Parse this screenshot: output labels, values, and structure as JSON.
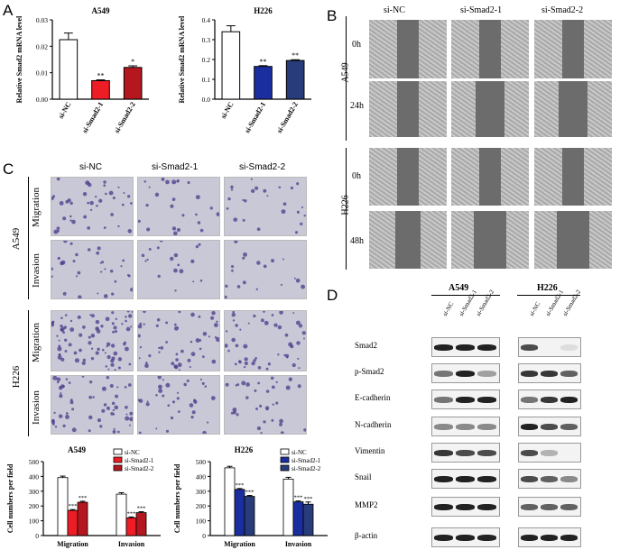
{
  "panels": {
    "A": "A",
    "B": "B",
    "C": "C",
    "D": "D"
  },
  "conditions": [
    "si-NC",
    "si-Smad2-1",
    "si-Smad2-2"
  ],
  "panelA": {
    "ylabel": "Relative Smad2 mRNA level",
    "stars": [
      "**",
      "*",
      "**",
      "**"
    ]
  },
  "panelB": {
    "cell_lines": [
      "A549",
      "H226"
    ],
    "times_a549": [
      "0h",
      "24h"
    ],
    "times_h226": [
      "0h",
      "48h"
    ]
  },
  "panelC": {
    "cell_lines": [
      "A549",
      "H226"
    ],
    "assays": [
      "Migration",
      "Invasion"
    ],
    "ylabel": "Cell numbers per field",
    "stars": "***"
  },
  "panelD": {
    "cell_lines": [
      "A549",
      "H226"
    ],
    "lane_labels": [
      "si-NC",
      "si-Smad2-1",
      "si-Smad2-2"
    ],
    "proteins": [
      "Smad2",
      "p-Smad2",
      "E-cadherin",
      "N-cadherin",
      "Vimentin",
      "Snail",
      "MMP2",
      "β-actin"
    ]
  },
  "colors": {
    "si-NC": "#ffffff",
    "si-Smad2-1_A549": "#ee1c24",
    "si-Smad2-2_A549": "#b4171d",
    "si-Smad2-1_H226": "#1b2ea0",
    "si-Smad2-2_H226": "#283b7a"
  },
  "chart_data": [
    {
      "type": "bar",
      "title": "A549",
      "xlabel": "",
      "ylabel": "Relative Smad2 mRNA level",
      "categories": [
        "si-NC",
        "si-Smad2-1",
        "si-Smad2-2"
      ],
      "values": [
        0.0225,
        0.007,
        0.012
      ],
      "errors": [
        0.0025,
        0.0003,
        0.0006
      ],
      "ylim": [
        0,
        0.03
      ],
      "yticks": [
        0.0,
        0.01,
        0.02,
        0.03
      ],
      "ytick_labels": [
        "0.00",
        "0.01",
        "0.02",
        "0.03"
      ],
      "colors": [
        "#ffffff",
        "#ee1c24",
        "#b4171d"
      ],
      "annotations": [
        "",
        "**",
        "*"
      ]
    },
    {
      "type": "bar",
      "title": "H226",
      "xlabel": "",
      "ylabel": "Relative Smad2 mRNA level",
      "categories": [
        "si-NC",
        "si-Smad2-1",
        "si-Smad2-2"
      ],
      "values": [
        0.34,
        0.165,
        0.195
      ],
      "errors": [
        0.03,
        0.004,
        0.004
      ],
      "ylim": [
        0,
        0.4
      ],
      "yticks": [
        0,
        0.1,
        0.2,
        0.3,
        0.4
      ],
      "ytick_labels": [
        "0.0",
        "0.1",
        "0.2",
        "0.3",
        "0.4"
      ],
      "colors": [
        "#ffffff",
        "#1b2ea0",
        "#283b7a"
      ],
      "annotations": [
        "",
        "**",
        "**"
      ]
    },
    {
      "type": "bar",
      "title": "A549",
      "xlabel": "",
      "ylabel": "Cell numbers per field",
      "categories": [
        "Migration",
        "Invasion"
      ],
      "series": [
        {
          "name": "si-NC",
          "values": [
            392,
            280
          ],
          "errors": [
            10,
            10
          ]
        },
        {
          "name": "si-Smad2-1",
          "values": [
            170,
            120
          ],
          "errors": [
            6,
            6
          ]
        },
        {
          "name": "si-Smad2-2",
          "values": [
            225,
            155
          ],
          "errors": [
            7,
            6
          ]
        }
      ],
      "ylim": [
        0,
        500
      ],
      "yticks": [
        0,
        100,
        200,
        300,
        400,
        500
      ],
      "colors": [
        "#ffffff",
        "#ee1c24",
        "#b4171d"
      ],
      "legend": "top-right",
      "annotations": [
        "***"
      ]
    },
    {
      "type": "bar",
      "title": "H226",
      "xlabel": "",
      "ylabel": "Cell numbers per field",
      "categories": [
        "Migration",
        "Invasion"
      ],
      "series": [
        {
          "name": "si-NC",
          "values": [
            458,
            382
          ],
          "errors": [
            10,
            12
          ]
        },
        {
          "name": "si-Smad2-1",
          "values": [
            312,
            228
          ],
          "errors": [
            6,
            6
          ]
        },
        {
          "name": "si-Smad2-2",
          "values": [
            265,
            212
          ],
          "errors": [
            6,
            15
          ]
        }
      ],
      "ylim": [
        0,
        500
      ],
      "yticks": [
        0,
        100,
        200,
        300,
        400,
        500
      ],
      "colors": [
        "#ffffff",
        "#1b2ea0",
        "#283b7a"
      ],
      "legend": "top-right",
      "annotations": [
        "***"
      ]
    }
  ]
}
